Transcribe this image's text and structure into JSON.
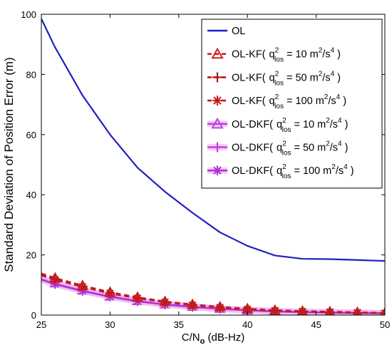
{
  "chart_data": {
    "type": "line",
    "xlabel": "C/N",
    "xlabel_sub": "o",
    "xlabel_unit": " (dB-Hz)",
    "ylabel": "Standard Deviation of Position Error (m)",
    "xlim": [
      25,
      50
    ],
    "ylim": [
      0,
      100
    ],
    "xticks": [
      25,
      30,
      35,
      40,
      45,
      50
    ],
    "yticks": [
      0,
      20,
      40,
      60,
      80,
      100
    ],
    "grid": false,
    "legend_position": "top-right",
    "series": [
      {
        "name": "OL",
        "color": "#1f1fbf",
        "dash": "solid",
        "marker": "none",
        "x": [
          25,
          26,
          28,
          30,
          32,
          34,
          36,
          38,
          40,
          42,
          44,
          46,
          48,
          50
        ],
        "y": [
          98.5,
          89,
          73,
          60,
          49,
          41,
          34,
          27.5,
          23,
          19.8,
          18.7,
          18.6,
          18.3,
          18
        ]
      },
      {
        "name": "OL-KF(",
        "q_sym": "q",
        "q_sup": "2",
        "q_sub": "los",
        "q_value": " = 10 m",
        "unit_sup1": "2",
        "unit_mid": "/s",
        "unit_sup2": "4",
        "suffix": " )",
        "color": "#d42020",
        "dash": "dashed",
        "marker": "triangle",
        "x": [
          25,
          26,
          28,
          30,
          32,
          34,
          36,
          38,
          40,
          42,
          44,
          46,
          48,
          50
        ],
        "y": [
          13.8,
          12.3,
          9.8,
          7.6,
          5.9,
          4.5,
          3.5,
          2.7,
          2.1,
          1.6,
          1.3,
          1.1,
          0.9,
          0.7
        ]
      },
      {
        "name": "OL-KF(",
        "q_sym": "q",
        "q_sup": "2",
        "q_sub": "los",
        "q_value": " = 50 m",
        "unit_sup1": "2",
        "unit_mid": "/s",
        "unit_sup2": "4",
        "suffix": " )",
        "color": "#b01818",
        "dash": "dashed",
        "marker": "plus",
        "x": [
          25,
          26,
          28,
          30,
          32,
          34,
          36,
          38,
          40,
          42,
          44,
          46,
          48,
          50
        ],
        "y": [
          13.5,
          12.0,
          9.6,
          7.4,
          5.7,
          4.4,
          3.4,
          2.6,
          2.0,
          1.5,
          1.2,
          1.0,
          0.8,
          0.7
        ]
      },
      {
        "name": "OL-KF(",
        "q_sym": "q",
        "q_sup": "2",
        "q_sub": "los",
        "q_value": " = 100 m",
        "unit_sup1": "2",
        "unit_mid": "/s",
        "unit_sup2": "4",
        "suffix": " )",
        "color": "#c01c1c",
        "dash": "dashed",
        "marker": "asterisk",
        "x": [
          25,
          26,
          28,
          30,
          32,
          34,
          36,
          38,
          40,
          42,
          44,
          46,
          48,
          50
        ],
        "y": [
          13.2,
          11.8,
          9.4,
          7.2,
          5.6,
          4.3,
          3.3,
          2.5,
          1.9,
          1.5,
          1.2,
          1.0,
          0.8,
          0.6
        ]
      },
      {
        "name": "OL-DKF(",
        "q_sym": "q",
        "q_sup": "2",
        "q_sub": "los",
        "q_value": " = 10 m",
        "unit_sup1": "2",
        "unit_mid": "/s",
        "unit_sup2": "4",
        "suffix": " )",
        "color": "#c040e0",
        "dash": "solid",
        "marker": "triangle",
        "x": [
          25,
          26,
          28,
          30,
          32,
          34,
          36,
          38,
          40,
          42,
          44,
          46,
          48,
          50
        ],
        "y": [
          12.3,
          10.7,
          8.3,
          6.3,
          4.8,
          3.7,
          2.9,
          2.2,
          1.7,
          1.3,
          1.1,
          0.9,
          0.8,
          0.6
        ]
      },
      {
        "name": "OL-DKF(",
        "q_sym": "q",
        "q_sup": "2",
        "q_sub": "los",
        "q_value": " = 50 m",
        "unit_sup1": "2",
        "unit_mid": "/s",
        "unit_sup2": "4",
        "suffix": " )",
        "color": "#c040e0",
        "dash": "solid",
        "marker": "plus",
        "x": [
          25,
          26,
          28,
          30,
          32,
          34,
          36,
          38,
          40,
          42,
          44,
          46,
          48,
          50
        ],
        "y": [
          12.0,
          10.5,
          8.1,
          6.2,
          4.7,
          3.6,
          2.8,
          2.1,
          1.6,
          1.3,
          1.0,
          0.9,
          0.7,
          0.6
        ]
      },
      {
        "name": "OL-DKF(",
        "q_sym": "q",
        "q_sup": "2",
        "q_sub": "los",
        "q_value": " = 100 m",
        "unit_sup1": "2",
        "unit_mid": "/s",
        "unit_sup2": "4",
        "suffix": " )",
        "color": "#b030d8",
        "dash": "solid",
        "marker": "asterisk",
        "x": [
          25,
          26,
          28,
          30,
          32,
          34,
          36,
          38,
          40,
          42,
          44,
          46,
          48,
          50
        ],
        "y": [
          11.8,
          10.3,
          8.0,
          6.1,
          4.6,
          3.5,
          2.7,
          2.1,
          1.6,
          1.2,
          1.0,
          0.8,
          0.7,
          0.6
        ]
      }
    ]
  }
}
